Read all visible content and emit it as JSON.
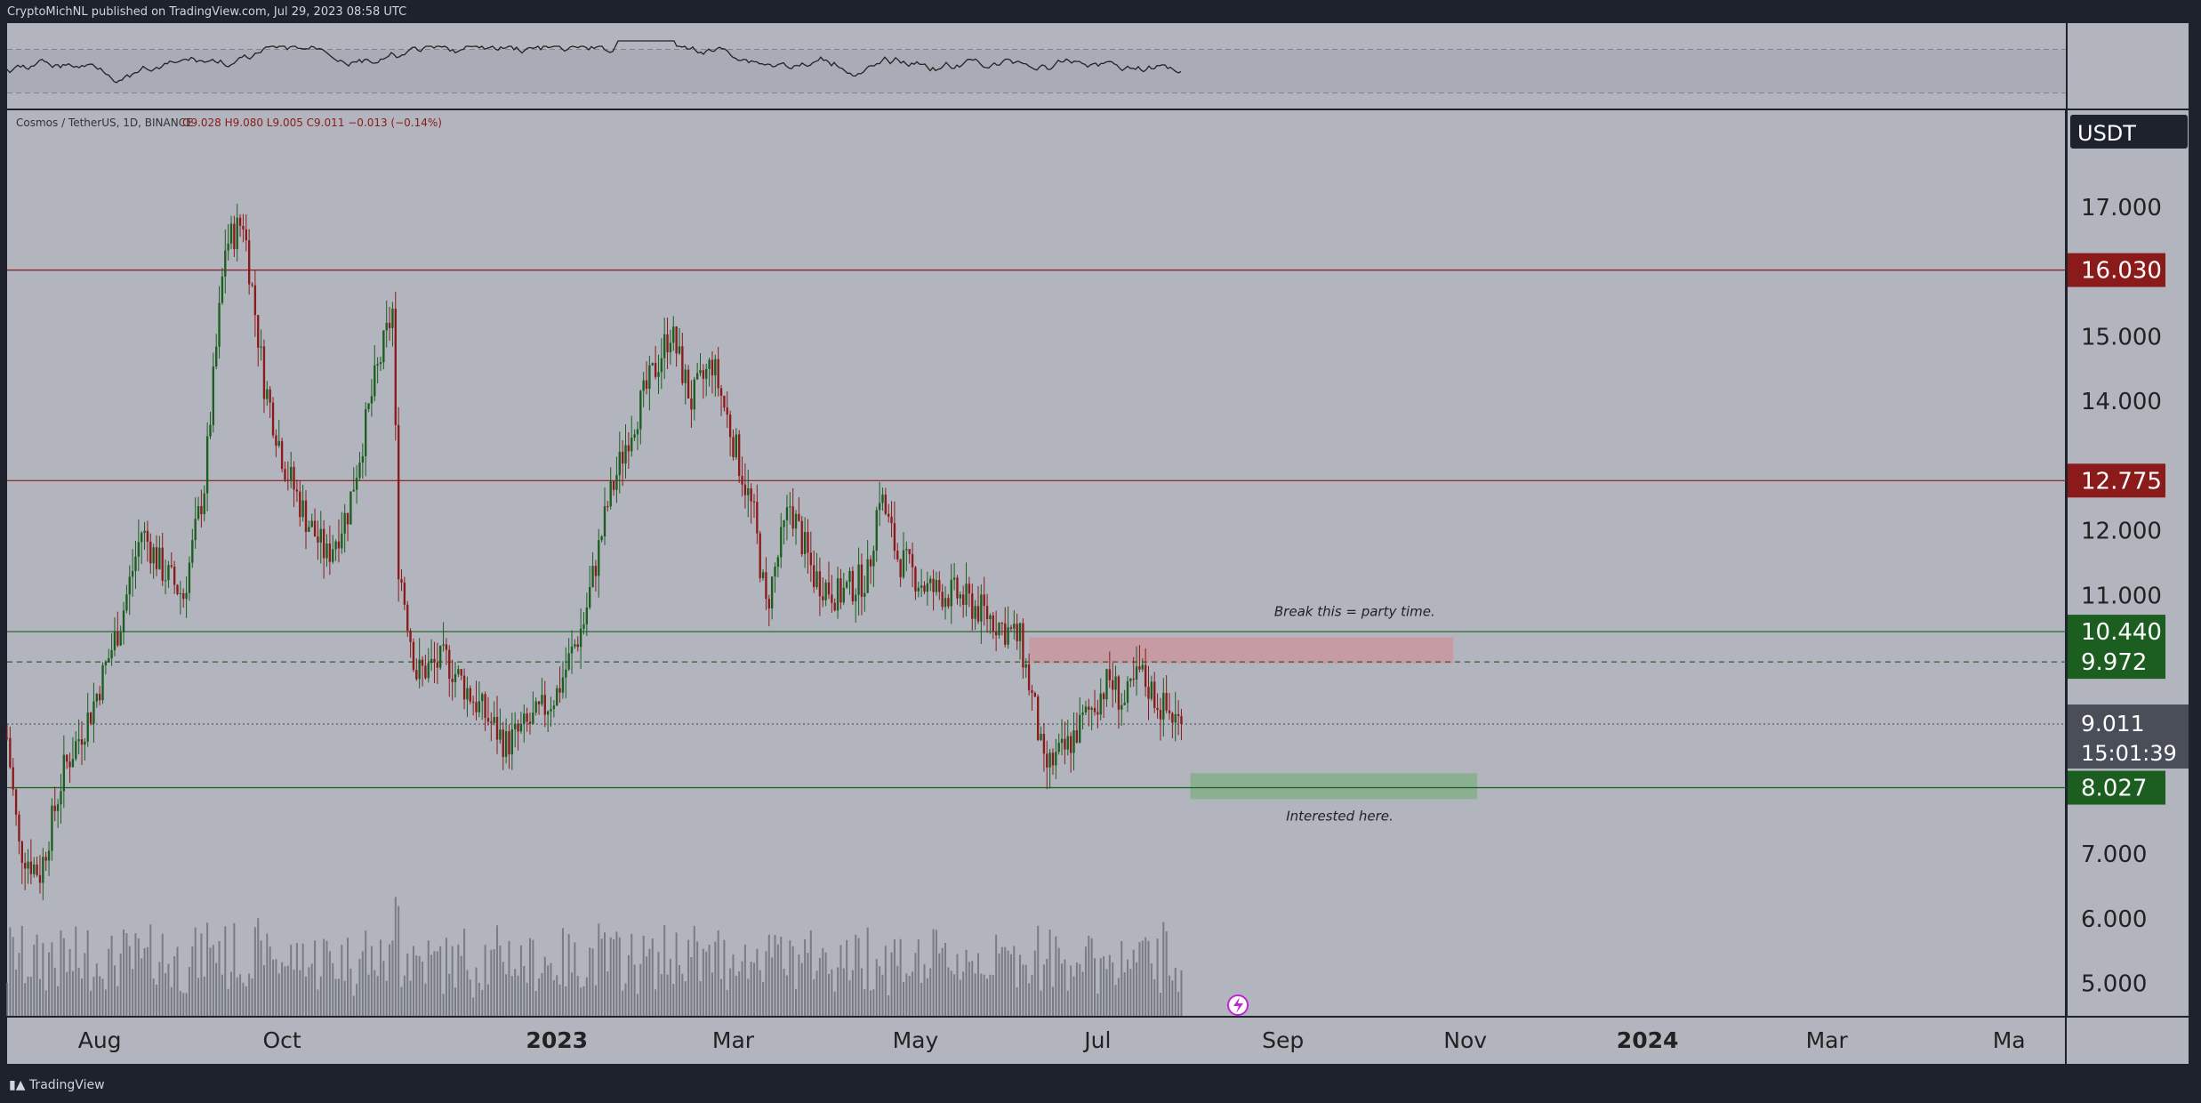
{
  "header": {
    "published": "CryptoMichNL published on TradingView.com, Jul 29, 2023 08:58 UTC",
    "symbol_line_prefix": "Cosmos / TetherUS, 1D, BINANCE",
    "ohlc": "O9.028 H9.080 L9.005 C9.011 −0.013 (−0.14%)"
  },
  "footer": {
    "brand": "TradingView"
  },
  "colors": {
    "background": "#b2b5be",
    "frame": "#1e222d",
    "up": "#1b5e20",
    "down": "#8b1a1a",
    "resistance": "#8b1a1a",
    "support": "#1b5e20",
    "price_box": "#4a4e59"
  },
  "chart_data": {
    "type": "candlestick",
    "symbol": "Cosmos / TetherUS",
    "interval": "1D",
    "exchange": "BINANCE",
    "currency_label": "USDT",
    "last_close": 9.011,
    "countdown": "15:01:39",
    "x_ticks": [
      "Aug",
      "Oct",
      "2023",
      "Mar",
      "May",
      "Jul",
      "Sep",
      "Nov",
      "2024",
      "Mar",
      "Ma"
    ],
    "y_ticks": [
      "5.000",
      "6.000",
      "7.000",
      "11.000",
      "12.000",
      "14.000",
      "15.000",
      "17.000"
    ],
    "ylim": [
      4.5,
      18.5
    ],
    "grid": false,
    "horizontal_levels": [
      {
        "label": "16.030",
        "value": 16.03,
        "role": "resistance"
      },
      {
        "label": "12.775",
        "value": 12.775,
        "role": "resistance"
      },
      {
        "label": "10.440",
        "value": 10.44,
        "role": "support"
      },
      {
        "label": "9.972",
        "value": 9.972,
        "role": "support"
      },
      {
        "label": "8.027",
        "value": 8.027,
        "role": "support"
      }
    ],
    "annotations": [
      {
        "text": "Break this = party time.",
        "zone": [
          9.95,
          10.35
        ],
        "role": "resistance-zone"
      },
      {
        "text": "Interested here.",
        "zone": [
          7.85,
          8.25
        ],
        "role": "support-zone"
      }
    ],
    "price_path": [
      {
        "date": "2022-07-01",
        "close": 8.8
      },
      {
        "date": "2022-07-05",
        "close": 7.1
      },
      {
        "date": "2022-07-12",
        "close": 6.7
      },
      {
        "date": "2022-07-20",
        "close": 8.3
      },
      {
        "date": "2022-07-29",
        "close": 9.2
      },
      {
        "date": "2022-08-08",
        "close": 10.6
      },
      {
        "date": "2022-08-15",
        "close": 12.0
      },
      {
        "date": "2022-08-22",
        "close": 11.4
      },
      {
        "date": "2022-08-29",
        "close": 11.0
      },
      {
        "date": "2022-09-05",
        "close": 12.7
      },
      {
        "date": "2022-09-12",
        "close": 16.4
      },
      {
        "date": "2022-09-18",
        "close": 16.8
      },
      {
        "date": "2022-09-25",
        "close": 14.3
      },
      {
        "date": "2022-10-02",
        "close": 13.0
      },
      {
        "date": "2022-10-09",
        "close": 12.2
      },
      {
        "date": "2022-10-16",
        "close": 11.6
      },
      {
        "date": "2022-10-23",
        "close": 12.3
      },
      {
        "date": "2022-11-01",
        "close": 14.3
      },
      {
        "date": "2022-11-07",
        "close": 15.4
      },
      {
        "date": "2022-11-09",
        "close": 11.5
      },
      {
        "date": "2022-11-15",
        "close": 9.8
      },
      {
        "date": "2022-11-25",
        "close": 10.0
      },
      {
        "date": "2022-12-01",
        "close": 9.6
      },
      {
        "date": "2022-12-15",
        "close": 8.7
      },
      {
        "date": "2022-12-25",
        "close": 9.1
      },
      {
        "date": "2023-01-01",
        "close": 9.5
      },
      {
        "date": "2023-01-10",
        "close": 10.6
      },
      {
        "date": "2023-01-18",
        "close": 12.4
      },
      {
        "date": "2023-01-25",
        "close": 13.5
      },
      {
        "date": "2023-02-02",
        "close": 14.4
      },
      {
        "date": "2023-02-08",
        "close": 15.1
      },
      {
        "date": "2023-02-15",
        "close": 14.0
      },
      {
        "date": "2023-02-22",
        "close": 14.6
      },
      {
        "date": "2023-03-01",
        "close": 13.4
      },
      {
        "date": "2023-03-08",
        "close": 12.2
      },
      {
        "date": "2023-03-12",
        "close": 10.8
      },
      {
        "date": "2023-03-20",
        "close": 12.4
      },
      {
        "date": "2023-03-28",
        "close": 11.3
      },
      {
        "date": "2023-04-05",
        "close": 11.0
      },
      {
        "date": "2023-04-15",
        "close": 11.3
      },
      {
        "date": "2023-04-19",
        "close": 12.6
      },
      {
        "date": "2023-04-25",
        "close": 11.6
      },
      {
        "date": "2023-05-05",
        "close": 11.1
      },
      {
        "date": "2023-05-15",
        "close": 11.0
      },
      {
        "date": "2023-05-25",
        "close": 10.7
      },
      {
        "date": "2023-06-05",
        "close": 10.3
      },
      {
        "date": "2023-06-10",
        "close": 9.2
      },
      {
        "date": "2023-06-13",
        "close": 8.3
      },
      {
        "date": "2023-06-20",
        "close": 8.6
      },
      {
        "date": "2023-06-28",
        "close": 9.2
      },
      {
        "date": "2023-07-05",
        "close": 9.7
      },
      {
        "date": "2023-07-10",
        "close": 9.3
      },
      {
        "date": "2023-07-15",
        "close": 9.8
      },
      {
        "date": "2023-07-22",
        "close": 9.3
      },
      {
        "date": "2023-07-29",
        "close": 9.011
      }
    ]
  }
}
